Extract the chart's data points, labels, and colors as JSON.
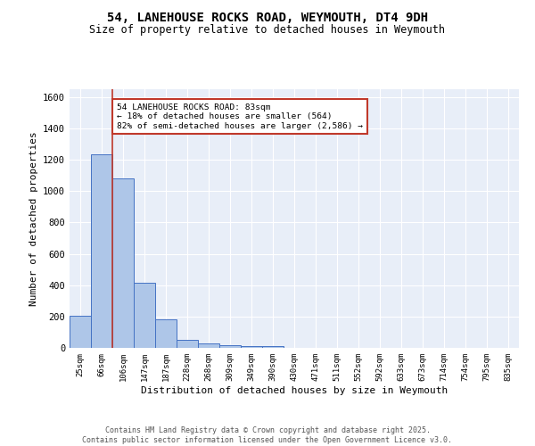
{
  "title_line1": "54, LANEHOUSE ROCKS ROAD, WEYMOUTH, DT4 9DH",
  "title_line2": "Size of property relative to detached houses in Weymouth",
  "xlabel": "Distribution of detached houses by size in Weymouth",
  "ylabel": "Number of detached properties",
  "categories": [
    "25sqm",
    "66sqm",
    "106sqm",
    "147sqm",
    "187sqm",
    "228sqm",
    "268sqm",
    "309sqm",
    "349sqm",
    "390sqm",
    "430sqm",
    "471sqm",
    "511sqm",
    "552sqm",
    "592sqm",
    "633sqm",
    "673sqm",
    "714sqm",
    "754sqm",
    "795sqm",
    "835sqm"
  ],
  "values": [
    202,
    1232,
    1080,
    415,
    180,
    50,
    27,
    18,
    12,
    10,
    0,
    0,
    0,
    0,
    0,
    0,
    0,
    0,
    0,
    0,
    0
  ],
  "bar_color": "#aec6e8",
  "bar_edge_color": "#4472c4",
  "background_color": "#e8eef8",
  "grid_color": "#ffffff",
  "vline_x": 1.5,
  "vline_color": "#c0392b",
  "annotation_text": "54 LANEHOUSE ROCKS ROAD: 83sqm\n← 18% of detached houses are smaller (564)\n82% of semi-detached houses are larger (2,586) →",
  "annotation_box_color": "#ffffff",
  "annotation_box_edge": "#c0392b",
  "ylim": [
    0,
    1650
  ],
  "yticks": [
    0,
    200,
    400,
    600,
    800,
    1000,
    1200,
    1400,
    1600
  ],
  "footer_text": "Contains HM Land Registry data © Crown copyright and database right 2025.\nContains public sector information licensed under the Open Government Licence v3.0."
}
